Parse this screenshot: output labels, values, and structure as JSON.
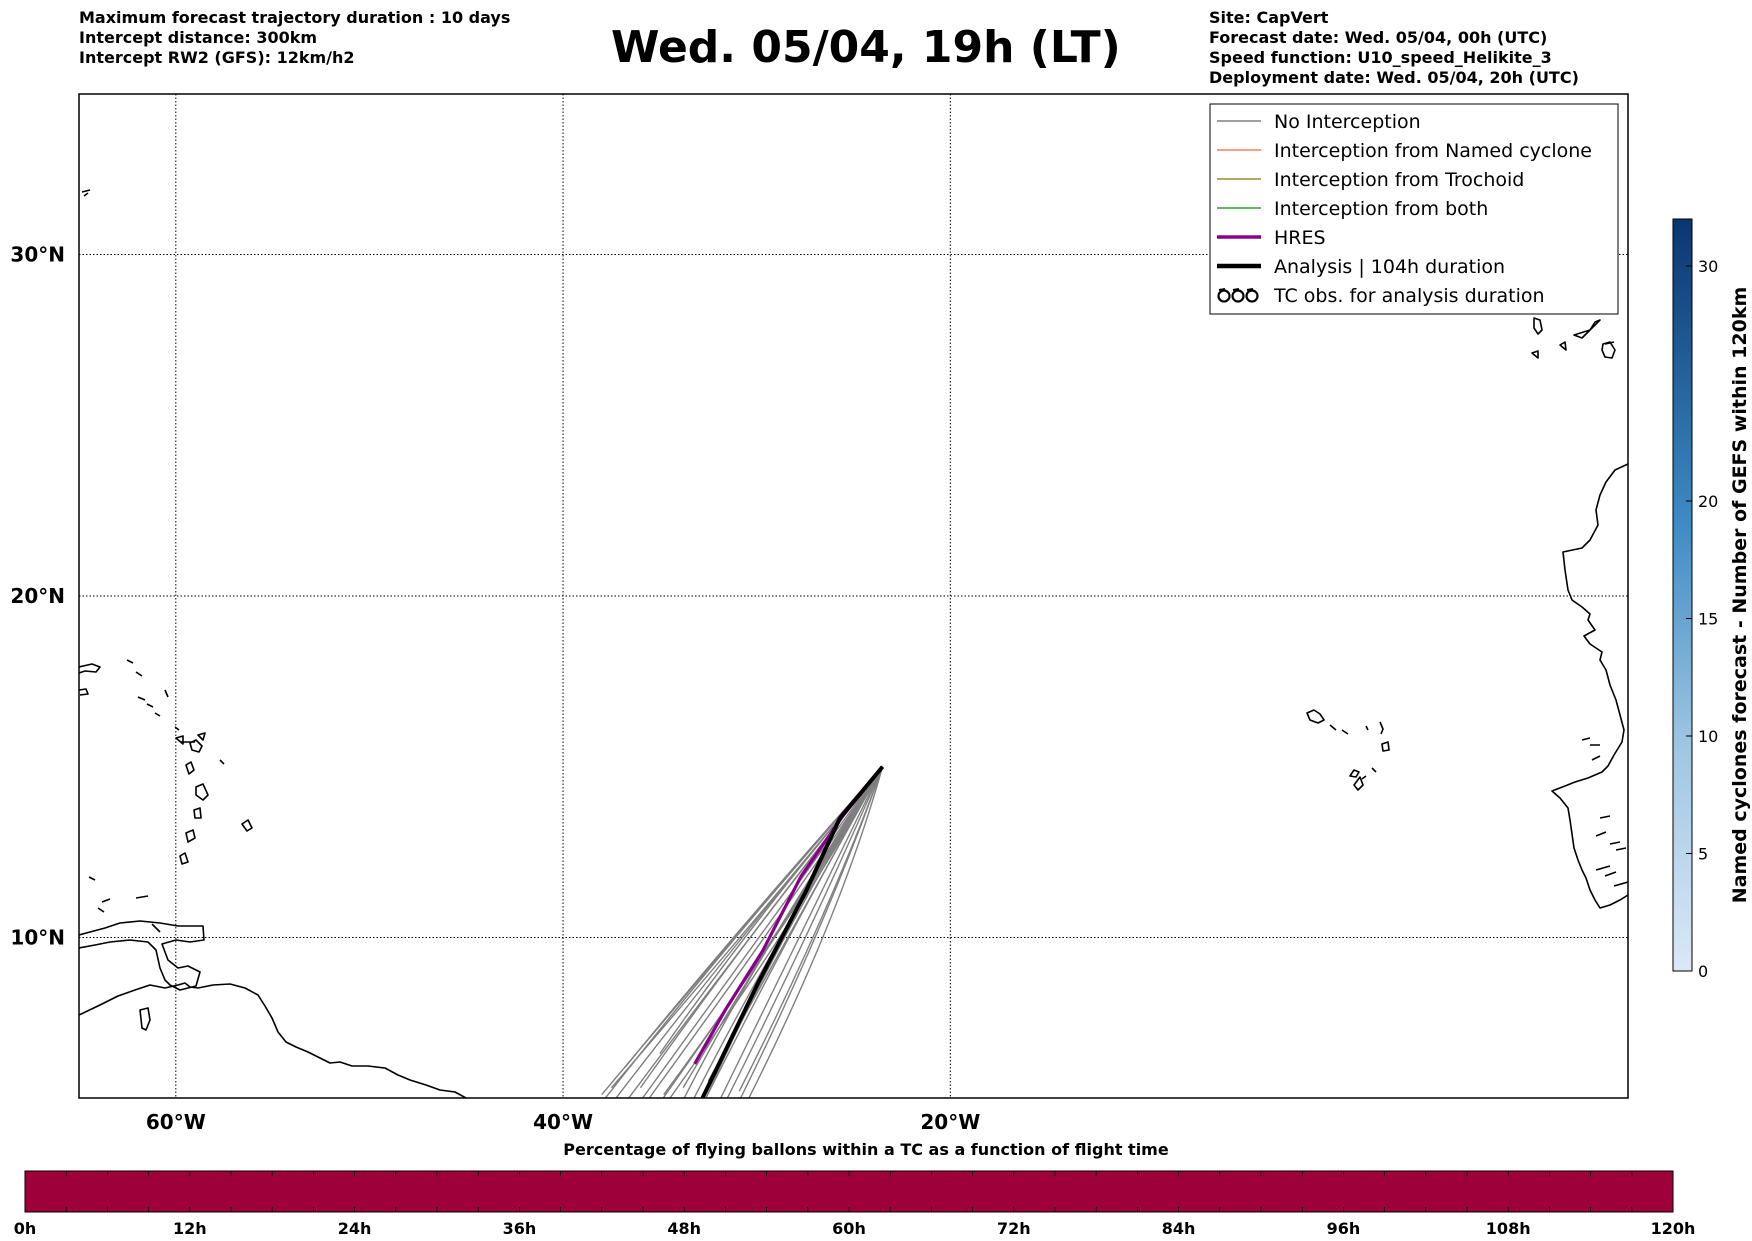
{
  "header": {
    "left_lines": [
      "Maximum forecast trajectory duration : 10 days",
      "Intercept distance: 300km",
      "Intercept RW2 (GFS):  12km/h2"
    ],
    "title": "Wed. 05/04, 19h (LT)",
    "right_lines": [
      "Site: CapVert",
      "Forecast date: Wed. 05/04, 00h (UTC)",
      "Speed function: U10_speed_Helikite_3",
      "Deployment date: Wed. 05/04, 20h (UTC)"
    ]
  },
  "map": {
    "lon_range": [
      -65,
      15
    ],
    "lat_range": [
      5.3,
      34.7
    ],
    "lon_ticks": [
      {
        "value": -60,
        "label": "60°W"
      },
      {
        "value": -40,
        "label": "40°W"
      },
      {
        "value": -20,
        "label": "20°W"
      }
    ],
    "lat_ticks": [
      {
        "value": 30,
        "label": "30°N"
      },
      {
        "value": 20,
        "label": "20°N"
      },
      {
        "value": 10,
        "label": "10°N"
      }
    ],
    "gridlines": true,
    "trajectory_origin": {
      "lon": -23.5,
      "lat": 15.0
    },
    "colors": {
      "no_interception": "#7f7f7f",
      "named_cyclone": "#ff7f50",
      "trochoid": "#9a8b33",
      "both": "#2ca02c",
      "hres": "#8b008b",
      "analysis": "#000000"
    }
  },
  "legend": {
    "items": [
      {
        "label": "No Interception",
        "style": "no_interception"
      },
      {
        "label": "Interception from Named cyclone",
        "style": "named_cyclone"
      },
      {
        "label": "Interception from Trochoid",
        "style": "trochoid"
      },
      {
        "label": "Interception from both",
        "style": "both"
      },
      {
        "label": "HRES",
        "style": "hres"
      },
      {
        "label": "Analysis | 104h duration",
        "style": "analysis"
      },
      {
        "label": "TC obs. for analysis duration",
        "style": "tc_symbols"
      }
    ]
  },
  "colorbar_right": {
    "label": "Named cyclones forecast - Number of GEFS within 120km",
    "min": 0,
    "max": 32,
    "ticks": [
      0,
      5,
      10,
      15,
      20,
      30
    ],
    "color_low": "#dbe8f6",
    "color_high": "#0a3670"
  },
  "bottom_bar": {
    "title": "Percentage of flying ballons within a TC as a function of flight time",
    "fill_color": "#9e003a",
    "ticks": [
      "0h",
      "12h",
      "24h",
      "36h",
      "48h",
      "60h",
      "72h",
      "84h",
      "96h",
      "108h",
      "120h"
    ]
  },
  "chart_data": {
    "type": "line",
    "x_axis": "longitude",
    "y_axis": "latitude",
    "series": [
      {
        "name": "HRES",
        "points": [
          [
            -23.5,
            15.0
          ],
          [
            -25.5,
            13.6
          ],
          [
            -27.7,
            11.8
          ],
          [
            -29.7,
            9.6
          ],
          [
            -31.6,
            7.9
          ],
          [
            -33.2,
            6.3
          ]
        ]
      },
      {
        "name": "Analysis | 104h duration",
        "points": [
          [
            -23.5,
            15.0
          ],
          [
            -25.7,
            13.5
          ],
          [
            -27.5,
            11.3
          ],
          [
            -29.9,
            8.7
          ],
          [
            -32.8,
            5.3
          ]
        ]
      }
    ]
  }
}
